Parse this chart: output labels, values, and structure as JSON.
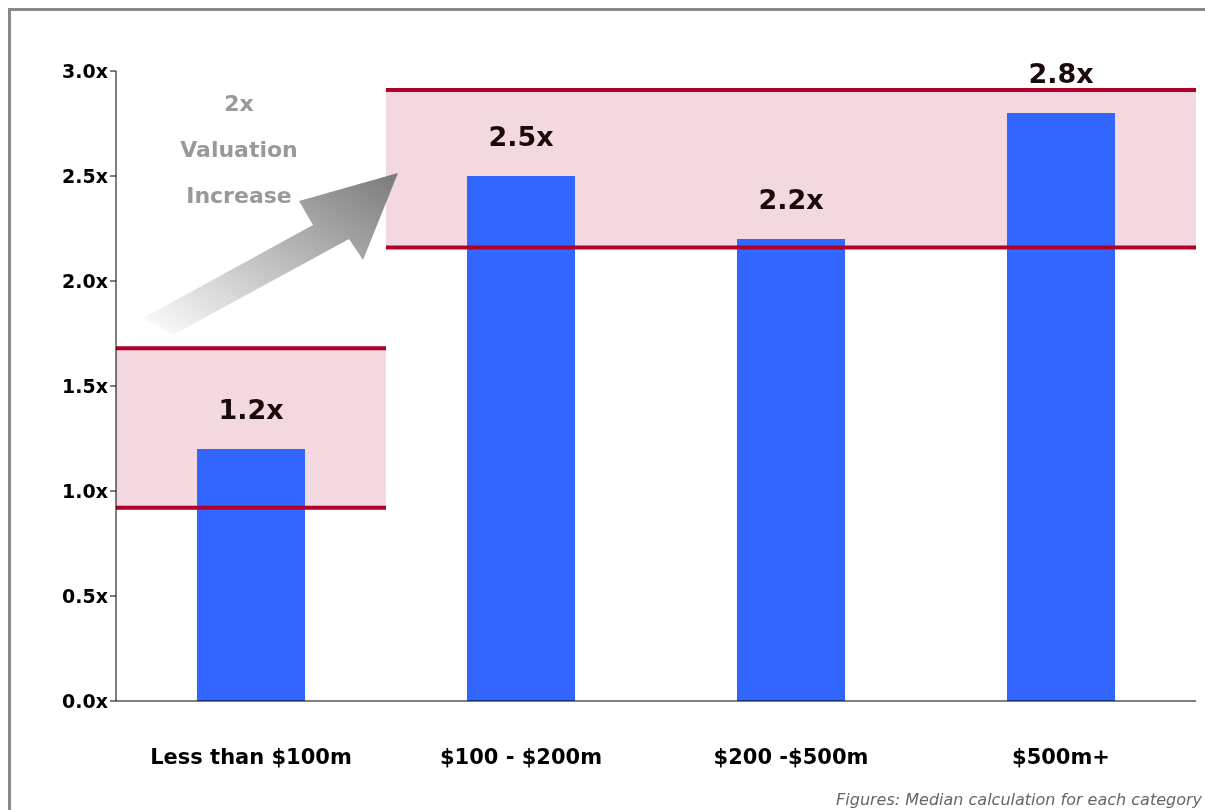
{
  "chart_data": {
    "type": "bar",
    "categories": [
      "Less than $100m",
      "$100 - $200m",
      "$200 -$500m",
      "$500m+"
    ],
    "values": [
      1.2,
      2.5,
      2.2,
      2.8
    ],
    "color": "#3366ff",
    "value_labels": [
      "1.2x",
      "2.5x",
      "2.2x",
      "2.8x"
    ],
    "ylim": [
      0,
      3
    ],
    "yticks": [
      {
        "value": 0,
        "label": "0.0x"
      },
      {
        "value": 0.5,
        "label": "0.5x"
      },
      {
        "value": 1,
        "label": "1.0x"
      },
      {
        "value": 1.5,
        "label": "1.5x"
      },
      {
        "value": 2,
        "label": "2.0x"
      },
      {
        "value": 2.5,
        "label": "2.5x"
      },
      {
        "value": 3,
        "label": "3.0x"
      }
    ],
    "grid": false,
    "legend": false,
    "bands": [
      {
        "axis": "y",
        "from": 0.92,
        "to": 1.68,
        "color": "#e8b4c0"
      },
      {
        "axis": "y",
        "from": 2.16,
        "to": 2.91,
        "color": "#e8b4c0"
      }
    ],
    "ref_lines": [
      {
        "axis": "y",
        "value": 0.92,
        "color": "#b0002a"
      },
      {
        "axis": "y",
        "value": 1.68,
        "color": "#b0002a"
      },
      {
        "axis": "y",
        "value": 2.16,
        "color": "#b0002a"
      },
      {
        "axis": "y",
        "value": 2.91,
        "color": "#b0002a"
      }
    ],
    "annotations": [
      "2x Valuation Increase",
      "Figures: Median calculation for each category"
    ]
  }
}
